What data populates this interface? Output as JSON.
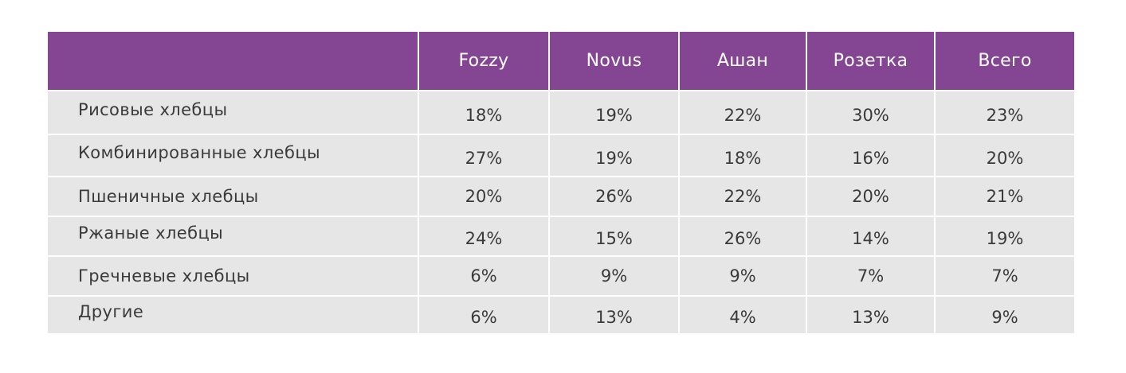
{
  "chart_data": {
    "type": "table",
    "columns": [
      "",
      "Fozzy",
      "Novus",
      "Ашан",
      "Розетка",
      "Всего"
    ],
    "rows": [
      {
        "label": "Рисовые хлебцы",
        "values": [
          "18%",
          "19%",
          "22%",
          "30%",
          "23%"
        ]
      },
      {
        "label": "Комбинированные хлебцы",
        "values": [
          "27%",
          "19%",
          "18%",
          "16%",
          "20%"
        ]
      },
      {
        "label": "Пшеничные хлебцы",
        "values": [
          "20%",
          "26%",
          "22%",
          "20%",
          "21%"
        ]
      },
      {
        "label": "Ржаные хлебцы",
        "values": [
          "24%",
          "15%",
          "26%",
          "14%",
          "19%"
        ]
      },
      {
        "label": "Гречневые хлебцы",
        "values": [
          "6%",
          "9%",
          "9%",
          "7%",
          "7%"
        ]
      },
      {
        "label": "Другие",
        "values": [
          "6%",
          "13%",
          "4%",
          "13%",
          "9%"
        ]
      }
    ]
  },
  "colors": {
    "header_bg": "#844593",
    "header_text": "#ffffff",
    "cell_bg": "#e7e6e7",
    "cell_text": "#3a3a3a"
  }
}
